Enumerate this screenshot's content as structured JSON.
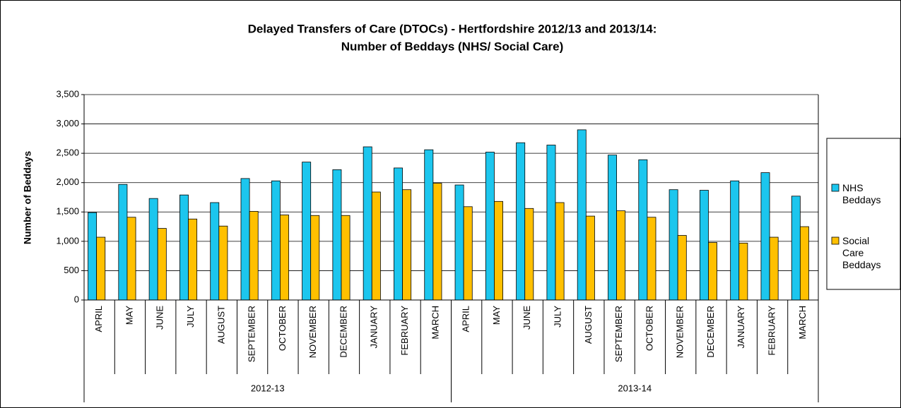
{
  "chart_data": {
    "type": "bar",
    "title": [
      "Delayed Transfers of Care (DTOCs) - Hertfordshire 2012/13 and 2013/14:",
      "Number of Beddays (NHS/ Social Care)"
    ],
    "y_label": "Number of Beddays",
    "category_groups": [
      {
        "label": "2012-13",
        "categories": [
          "APRIL",
          "MAY",
          "JUNE",
          "JULY",
          "AUGUST",
          "SEPTEMBER",
          "OCTOBER",
          "NOVEMBER",
          "DECEMBER",
          "JANUARY",
          "FEBRUARY",
          "MARCH"
        ]
      },
      {
        "label": "2013-14",
        "categories": [
          "APRIL",
          "MAY",
          "JUNE",
          "JULY",
          "AUGUST",
          "SEPTEMBER",
          "OCTOBER",
          "NOVEMBER",
          "DECEMBER",
          "JANUARY",
          "FEBRUARY",
          "MARCH"
        ]
      }
    ],
    "series": [
      {
        "name": "NHS Beddays",
        "color": "#1cc6ee",
        "values": [
          1490,
          1970,
          1730,
          1790,
          1660,
          2070,
          2030,
          2350,
          2220,
          2610,
          2250,
          2560,
          1960,
          2520,
          2680,
          2640,
          2900,
          2470,
          2390,
          1880,
          1870,
          2030,
          2170,
          1770
        ]
      },
      {
        "name": "Social Care Beddays",
        "color": "#ffc000",
        "values": [
          1070,
          1410,
          1220,
          1380,
          1260,
          1510,
          1450,
          1440,
          1440,
          1840,
          1880,
          1990,
          1590,
          1680,
          1560,
          1660,
          1430,
          1520,
          1410,
          1100,
          980,
          970,
          1070,
          1250
        ]
      }
    ],
    "ylim": [
      0,
      3500
    ],
    "yticks": [
      0,
      500,
      {
        "value": 1000,
        "label": "1,000"
      },
      {
        "value": 1500,
        "label": "1,500"
      },
      {
        "value": 2000,
        "label": "2,000"
      },
      {
        "value": 2500,
        "label": "2,500"
      },
      {
        "value": 3000,
        "label": "3,000"
      },
      {
        "value": 3500,
        "label": "3,500"
      }
    ],
    "grid": true,
    "legend": "right"
  }
}
